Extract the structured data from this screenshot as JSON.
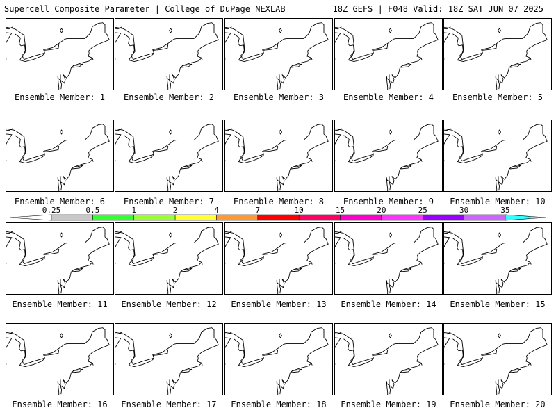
{
  "header": {
    "left_title": "Supercell Composite Parameter | College of DuPage NEXLAB",
    "right_title": "18Z GEFS | F048 Valid: 18Z SAT JUN 07 2025"
  },
  "colorbar": {
    "tick_labels": [
      "0.25",
      "0.5",
      "1",
      "2",
      "4",
      "7",
      "10",
      "15",
      "20",
      "25",
      "30",
      "35"
    ],
    "colors": [
      "#c8c8c8",
      "#33ff33",
      "#99ff33",
      "#ffff33",
      "#ff9933",
      "#ff0000",
      "#ff0066",
      "#ff00cc",
      "#ff33ff",
      "#9900ff",
      "#cc66ff",
      "#33ffff"
    ]
  },
  "map": {
    "fill_colors": {
      "gray": "#c8c8c8",
      "green": "#33ff33"
    },
    "members": [
      {
        "label": "Ensemble Member: 1",
        "gray": [
          [
            70,
            120,
            5,
            4
          ],
          [
            93,
            103,
            4,
            3
          ]
        ],
        "green": []
      },
      {
        "label": "Ensemble Member: 2",
        "gray": [
          [
            75,
            35,
            9,
            8
          ],
          [
            88,
            75,
            7,
            6
          ],
          [
            73,
            100,
            12,
            10
          ]
        ],
        "green": [
          [
            78,
            33,
            4,
            5
          ],
          [
            73,
            112,
            5,
            6
          ]
        ]
      },
      {
        "label": "Ensemble Member: 3",
        "gray": [
          [
            96,
            98,
            4,
            7
          ],
          [
            84,
            122,
            5,
            4
          ]
        ],
        "green": [
          [
            95,
            116,
            3,
            3
          ]
        ]
      },
      {
        "label": "Ensemble Member: 4",
        "gray": [
          [
            95,
            52,
            8,
            6
          ],
          [
            90,
            106,
            9,
            6
          ]
        ],
        "green": [
          [
            88,
            105,
            4,
            3
          ]
        ]
      },
      {
        "label": "Ensemble Member: 5",
        "gray": [
          [
            78,
            110,
            10,
            5
          ],
          [
            74,
            125,
            4,
            4
          ]
        ],
        "green": [
          [
            76,
            108,
            5,
            3
          ]
        ]
      },
      {
        "label": "Ensemble Member: 6",
        "gray": [
          [
            68,
            270,
            8,
            5
          ],
          [
            63,
            262,
            4,
            3
          ]
        ],
        "green": [
          [
            72,
            269,
            4,
            3
          ]
        ]
      },
      {
        "label": "Ensemble Member: 7",
        "gray": [
          [
            78,
            244,
            6,
            4
          ],
          [
            72,
            268,
            8,
            5
          ]
        ],
        "green": [
          [
            70,
            268,
            4,
            3
          ]
        ]
      },
      {
        "label": "Ensemble Member: 8",
        "gray": [
          [
            50,
            265,
            4,
            3
          ]
        ],
        "green": []
      },
      {
        "label": "Ensemble Member: 9",
        "gray": [
          [
            92,
            236,
            10,
            8
          ],
          [
            66,
            262,
            9,
            7
          ]
        ],
        "green": []
      },
      {
        "label": "Ensemble Member: 10",
        "gray": [
          [
            86,
            244,
            18,
            12
          ],
          [
            68,
            266,
            16,
            10
          ]
        ],
        "green": [
          [
            70,
            265,
            10,
            6
          ],
          [
            97,
            241,
            5,
            4
          ],
          [
            82,
            243,
            4,
            3
          ]
        ]
      },
      {
        "label": "Ensemble Member: 11",
        "gray": [
          [
            82,
            374,
            12,
            10
          ],
          [
            55,
            410,
            8,
            5
          ],
          [
            73,
            400,
            4,
            3
          ]
        ],
        "green": [
          [
            82,
            373,
            6,
            6
          ]
        ]
      },
      {
        "label": "Ensemble Member: 12",
        "gray": [
          [
            92,
            400,
            14,
            7
          ],
          [
            72,
            413,
            8,
            6
          ]
        ],
        "green": [
          [
            84,
            408,
            4,
            3
          ],
          [
            97,
            400,
            4,
            3
          ]
        ]
      },
      {
        "label": "Ensemble Member: 13",
        "gray": [],
        "green": []
      },
      {
        "label": "Ensemble Member: 14",
        "gray": [
          [
            65,
            362,
            4,
            4
          ]
        ],
        "green": []
      },
      {
        "label": "Ensemble Member: 15",
        "gray": [
          [
            66,
            410,
            6,
            8
          ],
          [
            56,
            358,
            7,
            4
          ]
        ],
        "green": []
      },
      {
        "label": "Ensemble Member: 16",
        "gray": [
          [
            72,
            550,
            9,
            10
          ],
          [
            58,
            525,
            6,
            4
          ]
        ],
        "green": [
          [
            80,
            548,
            3,
            3
          ]
        ]
      },
      {
        "label": "Ensemble Member: 17",
        "gray": [
          [
            98,
            500,
            10,
            8
          ],
          [
            84,
            535,
            26,
            22
          ]
        ],
        "green": [
          [
            82,
            533,
            14,
            12
          ],
          [
            95,
            498,
            4,
            4
          ],
          [
            72,
            555,
            5,
            5
          ]
        ]
      },
      {
        "label": "Ensemble Member: 18",
        "gray": [
          [
            72,
            527,
            10,
            7
          ],
          [
            66,
            555,
            8,
            7
          ]
        ],
        "green": [
          [
            72,
            527,
            4,
            3
          ]
        ]
      },
      {
        "label": "Ensemble Member: 19",
        "gray": [
          [
            88,
            525,
            14,
            10
          ],
          [
            64,
            550,
            16,
            10
          ]
        ],
        "green": [
          [
            66,
            550,
            10,
            6
          ],
          [
            88,
            524,
            5,
            3
          ]
        ]
      },
      {
        "label": "Ensemble Member: 20",
        "gray": [
          [
            82,
            553,
            6,
            5
          ]
        ],
        "green": []
      }
    ]
  }
}
